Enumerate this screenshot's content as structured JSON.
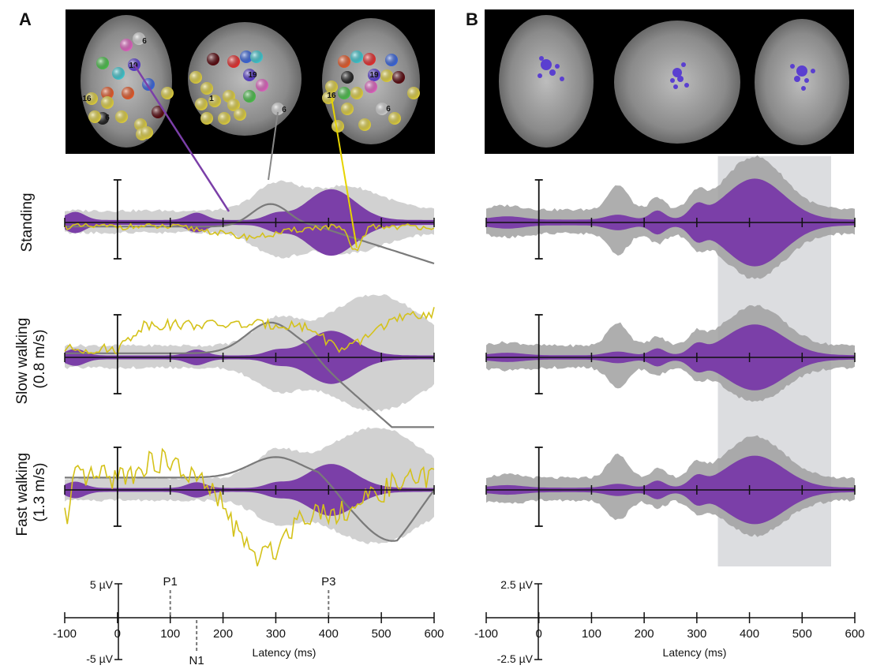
{
  "panels": {
    "a": {
      "label": "A"
    },
    "b": {
      "label": "B"
    }
  },
  "rows": [
    {
      "lines": [
        "Standing"
      ]
    },
    {
      "lines": [
        "Slow walking",
        "(0.8 m/s)"
      ]
    },
    {
      "lines": [
        "Fast walking",
        "(1.3 m/s)"
      ]
    }
  ],
  "brain_a": {
    "marker_labels": [
      "6",
      "19",
      "16",
      "6",
      "19",
      "1",
      "6",
      "16",
      "19",
      "6"
    ]
  },
  "scale_a": {
    "top": "5 µV",
    "bottom": "-5 µV"
  },
  "scale_b": {
    "top": "2.5 µV",
    "bottom": "-2.5 µV"
  },
  "components": [
    {
      "label": "P1",
      "x": 100,
      "side": "top"
    },
    {
      "label": "N1",
      "x": 150,
      "side": "bottom"
    },
    {
      "label": "P3",
      "x": 400,
      "side": "top"
    }
  ],
  "chart_data": [
    {
      "panel": "A",
      "type": "line",
      "xlabel": "Latency (ms)",
      "xlim": [
        -100,
        600
      ],
      "xticks": [
        -100,
        0,
        100,
        200,
        300,
        400,
        500,
        600
      ],
      "ylim_uV": [
        -5,
        5
      ],
      "conditions": [
        "Standing",
        "Slow walking (0.8 m/s)",
        "Fast walking (1.3 m/s)"
      ],
      "colors": {
        "envelope": "#7b3fa8",
        "band": "#cfcfcf",
        "trace_gray": "#7a7a7a",
        "trace_yellow": "#d4c21a",
        "link_purple": "#7b3fa8",
        "link_gray": "#888888",
        "link_yellow": "#e6d400"
      }
    },
    {
      "panel": "B",
      "type": "area",
      "xlabel": "Latency (ms)",
      "xlim": [
        -100,
        600
      ],
      "xticks": [
        -100,
        0,
        100,
        200,
        300,
        400,
        500,
        600
      ],
      "ylim_uV": [
        -2.5,
        2.5
      ],
      "highlight_ms": [
        340,
        555
      ],
      "conditions": [
        "Standing",
        "Slow walking (0.8 m/s)",
        "Fast walking (1.3 m/s)"
      ],
      "colors": {
        "envelope": "#7b3fa8",
        "band": "#a0a0a0",
        "highlight": "#dcdde0",
        "cluster": "#5a3fd0"
      }
    }
  ]
}
